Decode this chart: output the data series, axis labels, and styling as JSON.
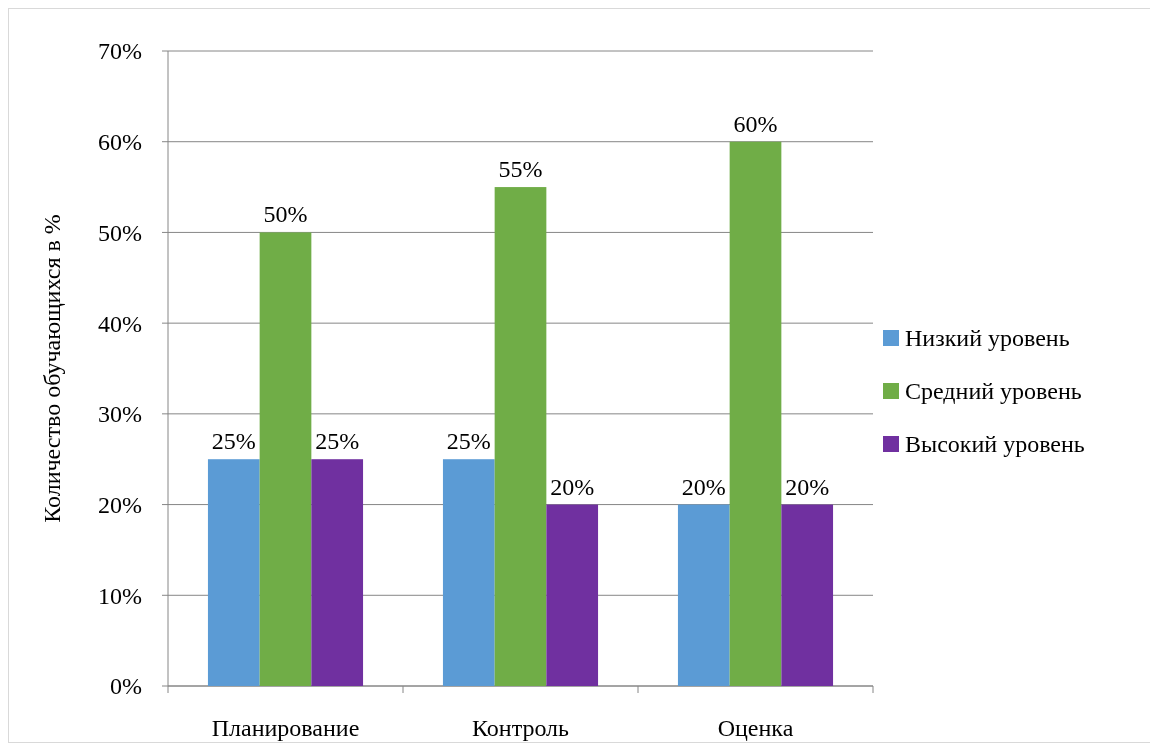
{
  "chart_data": {
    "type": "bar",
    "ylabel": "Количество обучающихся в %",
    "categories": [
      "Планирование",
      "Контроль",
      "Оценка"
    ],
    "series": [
      {
        "name": "Низкий уровень",
        "color": "#5b9bd5",
        "values": [
          25,
          25,
          20
        ],
        "value_labels": [
          "25%",
          "25%",
          "20%"
        ]
      },
      {
        "name": "Средний уровень",
        "color": "#70ad47",
        "values": [
          50,
          55,
          60
        ],
        "value_labels": [
          "50%",
          "55%",
          "60%"
        ]
      },
      {
        "name": "Высокий уровень",
        "color": "#7030a0",
        "values": [
          25,
          20,
          20
        ],
        "value_labels": [
          "25%",
          "20%",
          "20%"
        ]
      }
    ],
    "ylim": [
      0,
      70
    ],
    "yticks": [
      {
        "value": 0,
        "label": "0%"
      },
      {
        "value": 10,
        "label": "10%"
      },
      {
        "value": 20,
        "label": "20%"
      },
      {
        "value": 30,
        "label": "30%"
      },
      {
        "value": 40,
        "label": "40%"
      },
      {
        "value": 50,
        "label": "50%"
      },
      {
        "value": 60,
        "label": "60%"
      },
      {
        "value": 70,
        "label": "70%"
      }
    ],
    "grid": "y",
    "legend": "right"
  }
}
